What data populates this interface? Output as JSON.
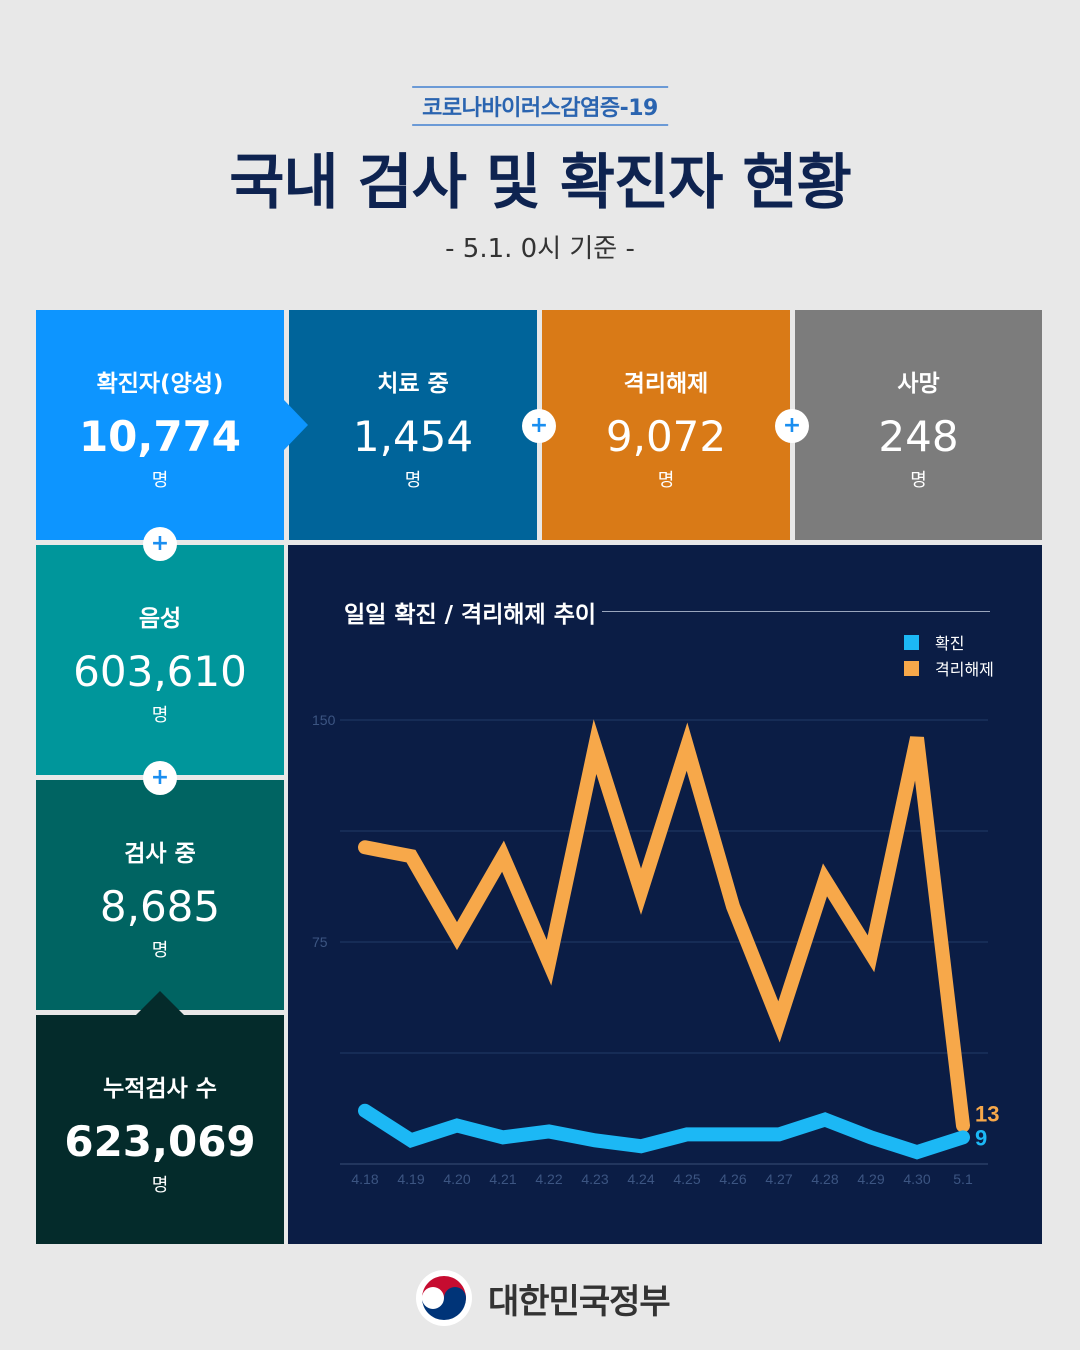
{
  "header": {
    "subtitle": "코로나바이러스감염증-19",
    "title": "국내 검사 및 확진자 현황",
    "date": "- 5.1. 0시 기준 -"
  },
  "stats": {
    "confirmed": {
      "label": "확진자(양성)",
      "value": "10,774",
      "unit": "명",
      "color": "#0d95ff"
    },
    "treatment": {
      "label": "치료 중",
      "value": "1,454",
      "unit": "명",
      "color": "#00649a"
    },
    "released": {
      "label": "격리해제",
      "value": "9,072",
      "unit": "명",
      "color": "#d97a17"
    },
    "deaths": {
      "label": "사망",
      "value": "248",
      "unit": "명",
      "color": "#7c7c7c"
    },
    "negative": {
      "label": "음성",
      "value": "603,610",
      "unit": "명",
      "color": "#00969b"
    },
    "testing": {
      "label": "검사 중",
      "value": "8,685",
      "unit": "명",
      "color": "#006462"
    },
    "total": {
      "label": "누적검사 수",
      "value": "623,069",
      "unit": "명",
      "color": "#042b2b"
    }
  },
  "plus_symbol": "+",
  "chart_data": {
    "type": "line",
    "title": "일일 확진 / 격리해제 추이",
    "categories": [
      "4.18",
      "4.19",
      "4.20",
      "4.21",
      "4.22",
      "4.23",
      "4.24",
      "4.25",
      "4.26",
      "4.27",
      "4.28",
      "4.29",
      "4.30",
      "5.1"
    ],
    "yticks": [
      150,
      75
    ],
    "ylim": [
      0,
      150
    ],
    "grid": true,
    "legend_position": "top-right",
    "series": [
      {
        "name": "확진",
        "color": "#1cb8f5",
        "values": [
          18,
          8,
          13,
          9,
          11,
          8,
          6,
          10,
          10,
          10,
          15,
          9,
          4,
          9
        ],
        "end_label": "9"
      },
      {
        "name": "격리해제",
        "color": "#f7a84a",
        "values": [
          107,
          104,
          77,
          104,
          68,
          141,
          92,
          141,
          87,
          48,
          96,
          71,
          144,
          13
        ],
        "end_label": "13"
      }
    ]
  },
  "footer": {
    "name": "대한민국정부"
  }
}
